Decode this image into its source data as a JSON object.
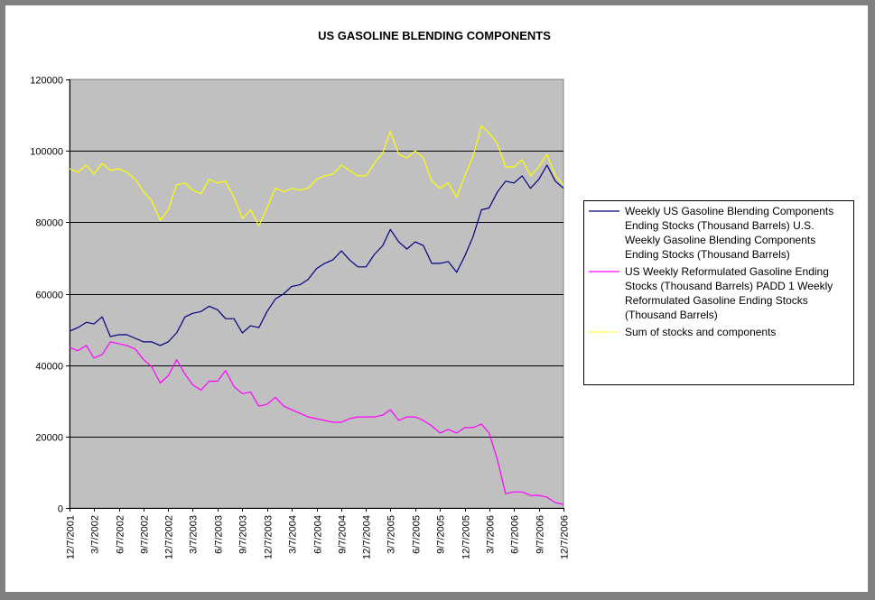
{
  "chart_data": {
    "type": "line",
    "title": "US GASOLINE BLENDING COMPONENTS",
    "xlabel": "",
    "ylabel": "",
    "ylim": [
      0,
      120000
    ],
    "y_ticks": [
      0,
      20000,
      40000,
      60000,
      80000,
      100000,
      120000
    ],
    "y_tick_labels": [
      "0",
      "20000",
      "40000",
      "60000",
      "80000",
      "100000",
      "120000"
    ],
    "x_ticks": [
      "12/7/2001",
      "3/7/2002",
      "6/7/2002",
      "9/7/2002",
      "12/7/2002",
      "3/7/2003",
      "6/7/2003",
      "9/7/2003",
      "12/7/2003",
      "3/7/2004",
      "6/7/2004",
      "9/7/2004",
      "12/7/2004",
      "3/7/2005",
      "6/7/2005",
      "9/7/2005",
      "12/7/2005",
      "3/7/2006",
      "6/7/2006",
      "9/7/2006",
      "12/7/2006"
    ],
    "grid": true,
    "legend_position": "right",
    "plot_background": "#c0c0c0",
    "series": [
      {
        "name": "Weekly US Gasoline Blending Components Ending Stocks (Thousand Barrels) U.S. Weekly Gasoline Blending Components Ending Stocks (Thousand Barrels)",
        "legend_lines": [
          "Weekly US Gasoline Blending Components",
          "Ending Stocks (Thousand Barrels) U.S.",
          "Weekly Gasoline Blending Components",
          "Ending Stocks (Thousand Barrels)"
        ],
        "color": "#000080",
        "points": [
          [
            "12/7/2001",
            49500
          ],
          [
            "1/7/2002",
            50500
          ],
          [
            "2/7/2002",
            52000
          ],
          [
            "3/7/2002",
            51500
          ],
          [
            "4/7/2002",
            53500
          ],
          [
            "5/7/2002",
            48000
          ],
          [
            "6/7/2002",
            48500
          ],
          [
            "7/7/2002",
            48500
          ],
          [
            "8/7/2002",
            47500
          ],
          [
            "9/7/2002",
            46500
          ],
          [
            "10/7/2002",
            46500
          ],
          [
            "11/7/2002",
            45500
          ],
          [
            "12/7/2002",
            46500
          ],
          [
            "1/7/2003",
            49000
          ],
          [
            "2/7/2003",
            53500
          ],
          [
            "3/7/2003",
            54500
          ],
          [
            "4/7/2003",
            55000
          ],
          [
            "5/7/2003",
            56500
          ],
          [
            "6/7/2003",
            55500
          ],
          [
            "7/7/2003",
            53000
          ],
          [
            "8/7/2003",
            53000
          ],
          [
            "9/7/2003",
            49000
          ],
          [
            "10/7/2003",
            51000
          ],
          [
            "11/7/2003",
            50500
          ],
          [
            "12/7/2003",
            55000
          ],
          [
            "1/7/2004",
            58500
          ],
          [
            "2/7/2004",
            60000
          ],
          [
            "3/7/2004",
            62000
          ],
          [
            "4/7/2004",
            62500
          ],
          [
            "5/7/2004",
            64000
          ],
          [
            "6/7/2004",
            67000
          ],
          [
            "7/7/2004",
            68500
          ],
          [
            "8/7/2004",
            69500
          ],
          [
            "9/7/2004",
            72000
          ],
          [
            "10/7/2004",
            69500
          ],
          [
            "11/7/2004",
            67500
          ],
          [
            "12/7/2004",
            67500
          ],
          [
            "1/7/2005",
            71000
          ],
          [
            "2/7/2005",
            73500
          ],
          [
            "3/7/2005",
            78000
          ],
          [
            "4/7/2005",
            74500
          ],
          [
            "5/7/2005",
            72500
          ],
          [
            "6/7/2005",
            74500
          ],
          [
            "7/7/2005",
            73500
          ],
          [
            "8/7/2005",
            68500
          ],
          [
            "9/7/2005",
            68500
          ],
          [
            "10/7/2005",
            69000
          ],
          [
            "11/7/2005",
            66000
          ],
          [
            "12/7/2005",
            70500
          ],
          [
            "1/7/2006",
            76000
          ],
          [
            "2/7/2006",
            83500
          ],
          [
            "3/7/2006",
            84000
          ],
          [
            "4/7/2006",
            88500
          ],
          [
            "5/7/2006",
            91500
          ],
          [
            "6/7/2006",
            91000
          ],
          [
            "7/7/2006",
            93000
          ],
          [
            "8/7/2006",
            89500
          ],
          [
            "9/7/2006",
            92000
          ],
          [
            "10/7/2006",
            96000
          ],
          [
            "11/7/2006",
            91500
          ],
          [
            "12/7/2006",
            89500
          ]
        ]
      },
      {
        "name": "US Weekly Reformulated Gasoline Ending Stocks (Thousand Barrels) PADD 1 Weekly Reformulated Gasoline Ending Stocks (Thousand Barrels)",
        "legend_lines": [
          "US Weekly Reformulated Gasoline Ending",
          "Stocks (Thousand Barrels) PADD 1 Weekly",
          "Reformulated Gasoline Ending Stocks",
          "(Thousand Barrels)"
        ],
        "color": "#ff00ff",
        "points": [
          [
            "12/7/2001",
            45000
          ],
          [
            "1/7/2002",
            44000
          ],
          [
            "2/7/2002",
            45500
          ],
          [
            "3/7/2002",
            42000
          ],
          [
            "4/7/2002",
            43000
          ],
          [
            "5/7/2002",
            46500
          ],
          [
            "6/7/2002",
            46000
          ],
          [
            "7/7/2002",
            45500
          ],
          [
            "8/7/2002",
            44500
          ],
          [
            "9/7/2002",
            41500
          ],
          [
            "10/7/2002",
            39500
          ],
          [
            "11/7/2002",
            35000
          ],
          [
            "12/7/2002",
            37000
          ],
          [
            "1/7/2003",
            41500
          ],
          [
            "2/7/2003",
            37500
          ],
          [
            "3/7/2003",
            34500
          ],
          [
            "4/7/2003",
            33000
          ],
          [
            "5/7/2003",
            35500
          ],
          [
            "6/7/2003",
            35500
          ],
          [
            "7/7/2003",
            38500
          ],
          [
            "8/7/2003",
            34000
          ],
          [
            "9/7/2003",
            32000
          ],
          [
            "10/7/2003",
            32500
          ],
          [
            "11/7/2003",
            28500
          ],
          [
            "12/7/2003",
            29000
          ],
          [
            "1/7/2004",
            31000
          ],
          [
            "2/7/2004",
            28500
          ],
          [
            "3/7/2004",
            27500
          ],
          [
            "4/7/2004",
            26500
          ],
          [
            "5/7/2004",
            25500
          ],
          [
            "6/7/2004",
            25000
          ],
          [
            "7/7/2004",
            24500
          ],
          [
            "8/7/2004",
            24000
          ],
          [
            "9/7/2004",
            24000
          ],
          [
            "10/7/2004",
            25000
          ],
          [
            "11/7/2004",
            25500
          ],
          [
            "12/7/2004",
            25500
          ],
          [
            "1/7/2005",
            25500
          ],
          [
            "2/7/2005",
            26000
          ],
          [
            "3/7/2005",
            27500
          ],
          [
            "4/7/2005",
            24500
          ],
          [
            "5/7/2005",
            25500
          ],
          [
            "6/7/2005",
            25500
          ],
          [
            "7/7/2005",
            24500
          ],
          [
            "8/7/2005",
            23000
          ],
          [
            "9/7/2005",
            21000
          ],
          [
            "10/7/2005",
            22000
          ],
          [
            "11/7/2005",
            21000
          ],
          [
            "12/7/2005",
            22500
          ],
          [
            "1/7/2006",
            22500
          ],
          [
            "2/7/2006",
            23500
          ],
          [
            "3/7/2006",
            21000
          ],
          [
            "4/7/2006",
            13500
          ],
          [
            "5/7/2006",
            4000
          ],
          [
            "6/7/2006",
            4500
          ],
          [
            "7/7/2006",
            4500
          ],
          [
            "8/7/2006",
            3500
          ],
          [
            "9/7/2006",
            3500
          ],
          [
            "10/7/2006",
            3000
          ],
          [
            "11/7/2006",
            1500
          ],
          [
            "12/7/2006",
            1000
          ]
        ]
      },
      {
        "name": "Sum of stocks and components",
        "legend_lines": [
          "Sum of stocks and components"
        ],
        "color": "#ffff00",
        "points": [
          [
            "12/7/2001",
            95000
          ],
          [
            "1/7/2002",
            94000
          ],
          [
            "2/7/2002",
            96000
          ],
          [
            "3/7/2002",
            93500
          ],
          [
            "4/7/2002",
            96500
          ],
          [
            "5/7/2002",
            94500
          ],
          [
            "6/7/2002",
            95000
          ],
          [
            "7/7/2002",
            94000
          ],
          [
            "8/7/2002",
            92000
          ],
          [
            "9/7/2002",
            88500
          ],
          [
            "10/7/2002",
            86000
          ],
          [
            "11/7/2002",
            80500
          ],
          [
            "12/7/2002",
            83500
          ],
          [
            "1/7/2003",
            90500
          ],
          [
            "2/7/2003",
            91000
          ],
          [
            "3/7/2003",
            89000
          ],
          [
            "4/7/2003",
            88000
          ],
          [
            "5/7/2003",
            92000
          ],
          [
            "6/7/2003",
            91000
          ],
          [
            "7/7/2003",
            91500
          ],
          [
            "8/7/2003",
            87000
          ],
          [
            "9/7/2003",
            81000
          ],
          [
            "10/7/2003",
            83500
          ],
          [
            "11/7/2003",
            79000
          ],
          [
            "12/7/2003",
            84000
          ],
          [
            "1/7/2004",
            89500
          ],
          [
            "2/7/2004",
            88500
          ],
          [
            "3/7/2004",
            89500
          ],
          [
            "4/7/2004",
            89000
          ],
          [
            "5/7/2004",
            89500
          ],
          [
            "6/7/2004",
            92000
          ],
          [
            "7/7/2004",
            93000
          ],
          [
            "8/7/2004",
            93500
          ],
          [
            "9/7/2004",
            96000
          ],
          [
            "10/7/2004",
            94500
          ],
          [
            "11/7/2004",
            93000
          ],
          [
            "12/7/2004",
            93000
          ],
          [
            "1/7/2005",
            96500
          ],
          [
            "2/7/2005",
            99500
          ],
          [
            "3/7/2005",
            105500
          ],
          [
            "4/7/2005",
            99000
          ],
          [
            "5/7/2005",
            98000
          ],
          [
            "6/7/2005",
            100000
          ],
          [
            "7/7/2005",
            98000
          ],
          [
            "8/7/2005",
            91500
          ],
          [
            "9/7/2005",
            89500
          ],
          [
            "10/7/2005",
            91000
          ],
          [
            "11/7/2005",
            87000
          ],
          [
            "12/7/2005",
            93000
          ],
          [
            "1/7/2006",
            98500
          ],
          [
            "2/7/2006",
            107000
          ],
          [
            "3/7/2006",
            105000
          ],
          [
            "4/7/2006",
            102000
          ],
          [
            "5/7/2006",
            95500
          ],
          [
            "6/7/2006",
            95500
          ],
          [
            "7/7/2006",
            97500
          ],
          [
            "8/7/2006",
            93000
          ],
          [
            "9/7/2006",
            95500
          ],
          [
            "10/7/2006",
            99000
          ],
          [
            "11/7/2006",
            93000
          ],
          [
            "12/7/2006",
            90500
          ]
        ]
      }
    ]
  }
}
